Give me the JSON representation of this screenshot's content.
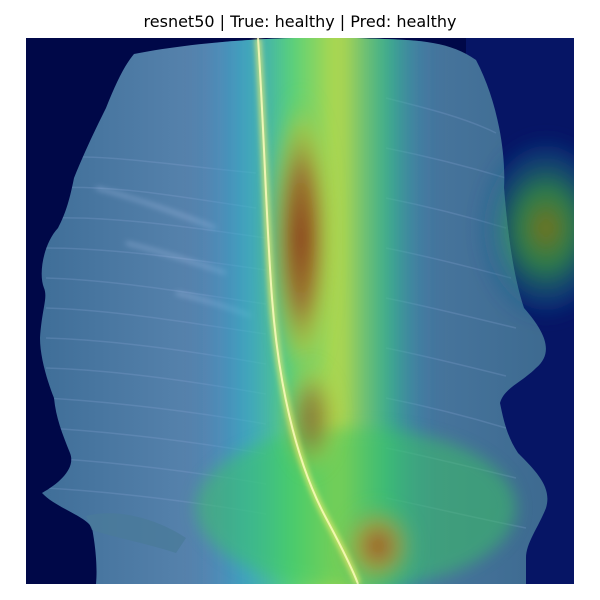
{
  "figure": {
    "title": "resnet50 | True: healthy | Pred: healthy"
  },
  "image": {
    "subject": "leaf",
    "overlay": "grad-cam heatmap",
    "colors": {
      "background": "#000848",
      "leaf_base": "#4f7fa8",
      "leaf_vein_highlight": "#b8c8f0",
      "heat_low": "#1a3ea0",
      "heat_mid": "#3ddc6a",
      "heat_high": "#e4e83a",
      "heat_peak": "#9a3a1a"
    }
  }
}
